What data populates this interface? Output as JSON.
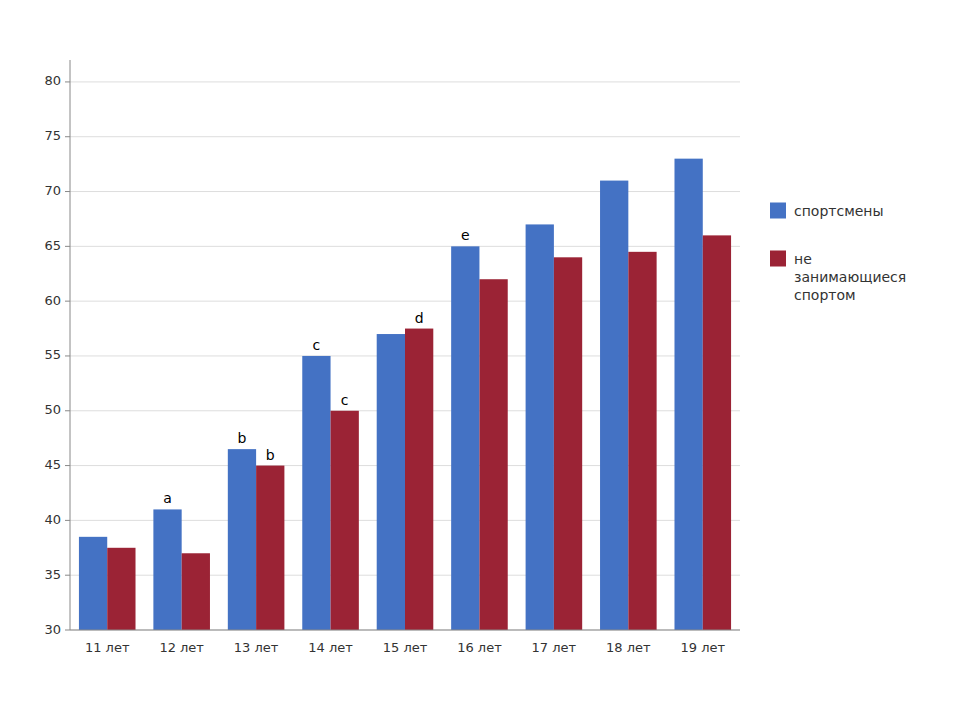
{
  "chart_data": {
    "type": "bar",
    "categories": [
      "11 лет",
      "12 лет",
      "13 лет",
      "14 лет",
      "15 лет",
      "16 лет",
      "17 лет",
      "18 лет",
      "19 лет"
    ],
    "series": [
      {
        "name": "спортсмены",
        "color": "#4472C4",
        "values": [
          38.5,
          41.0,
          46.5,
          55.0,
          57.0,
          65.0,
          67.0,
          71.0,
          73.0
        ]
      },
      {
        "name": "не\nзанимающиеся\nспортом",
        "color": "#9B2335",
        "values": [
          37.5,
          37.0,
          45.0,
          50.0,
          57.5,
          62.0,
          64.0,
          64.5,
          66.0
        ]
      }
    ],
    "ylim": [
      30,
      82
    ],
    "yticks": [
      30,
      35,
      40,
      45,
      50,
      55,
      60,
      65,
      70,
      75,
      80
    ],
    "grid": true,
    "legend": "right",
    "annotations": [
      {
        "text": "a",
        "category": "12 лет",
        "series": "спортсмены"
      },
      {
        "text": "b",
        "category": "13 лет",
        "series": "спортсмены"
      },
      {
        "text": "b",
        "category": "13 лет",
        "series": "не\nзанимающиеся\nспортом"
      },
      {
        "text": "c",
        "category": "14 лет",
        "series": "спортсмены"
      },
      {
        "text": "c",
        "category": "14 лет",
        "series": "не\nзанимающиеся\nспортом"
      },
      {
        "text": "d",
        "category": "15 лет",
        "series": "не\nзанимающиеся\nспортом"
      },
      {
        "text": "e",
        "category": "16 лет",
        "series": "спортсмены"
      }
    ]
  }
}
